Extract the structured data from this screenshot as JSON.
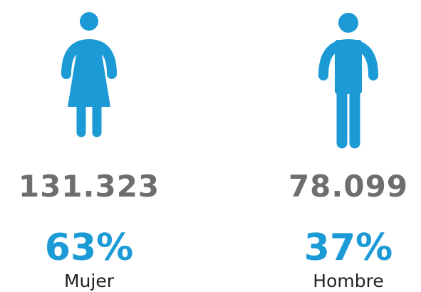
{
  "items": [
    {
      "count": "131.323",
      "percent": "63%",
      "label": "Mujer"
    },
    {
      "count": "78.099",
      "percent": "37%",
      "label": "Hombre"
    }
  ]
}
